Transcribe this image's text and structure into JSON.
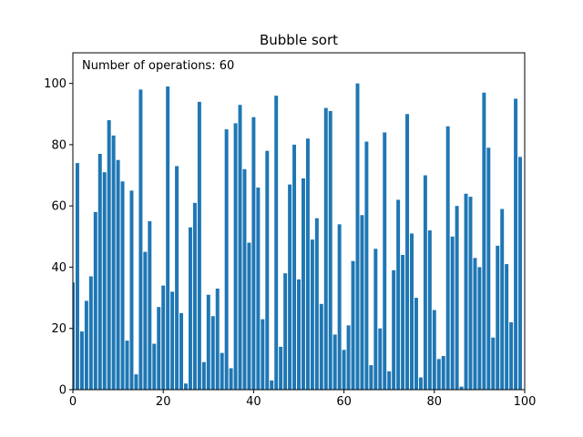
{
  "chart_data": {
    "type": "bar",
    "title": "Bubble sort",
    "annotation": {
      "prefix": "Number of operations: ",
      "value": "60",
      "text": "Number of operations: 60"
    },
    "xlabel": "",
    "ylabel": "",
    "xlim": [
      0,
      100
    ],
    "ylim": [
      0,
      110
    ],
    "xticks": [
      "0",
      "20",
      "40",
      "60",
      "80",
      "100"
    ],
    "yticks": [
      "0",
      "20",
      "40",
      "60",
      "80",
      "100"
    ],
    "grid": false,
    "bar_color": "#1f77b4",
    "x": [
      0,
      1,
      2,
      3,
      4,
      5,
      6,
      7,
      8,
      9,
      10,
      11,
      12,
      13,
      14,
      15,
      16,
      17,
      18,
      19,
      20,
      21,
      22,
      23,
      24,
      25,
      26,
      27,
      28,
      29,
      30,
      31,
      32,
      33,
      34,
      35,
      36,
      37,
      38,
      39,
      40,
      41,
      42,
      43,
      44,
      45,
      46,
      47,
      48,
      49,
      50,
      51,
      52,
      53,
      54,
      55,
      56,
      57,
      58,
      59,
      60,
      61,
      62,
      63,
      64,
      65,
      66,
      67,
      68,
      69,
      70,
      71,
      72,
      73,
      74,
      75,
      76,
      77,
      78,
      79,
      80,
      81,
      82,
      83,
      84,
      85,
      86,
      87,
      88,
      89,
      90,
      91,
      92,
      93,
      94,
      95,
      96,
      97,
      98,
      99
    ],
    "values": [
      35,
      74,
      19,
      29,
      37,
      58,
      77,
      71,
      88,
      83,
      75,
      68,
      16,
      65,
      5,
      98,
      45,
      55,
      15,
      27,
      34,
      99,
      32,
      73,
      25,
      2,
      53,
      61,
      94,
      9,
      31,
      24,
      33,
      12,
      85,
      7,
      87,
      93,
      72,
      48,
      89,
      66,
      23,
      78,
      3,
      96,
      14,
      38,
      67,
      80,
      36,
      69,
      82,
      49,
      56,
      28,
      92,
      91,
      18,
      54,
      13,
      21,
      42,
      100,
      57,
      81,
      8,
      46,
      20,
      84,
      6,
      39,
      62,
      44,
      90,
      51,
      30,
      4,
      70,
      52,
      26,
      10,
      11,
      86,
      50,
      60,
      1,
      64,
      63,
      43,
      40,
      97,
      79,
      17,
      47,
      59,
      41,
      22,
      95,
      76
    ]
  }
}
